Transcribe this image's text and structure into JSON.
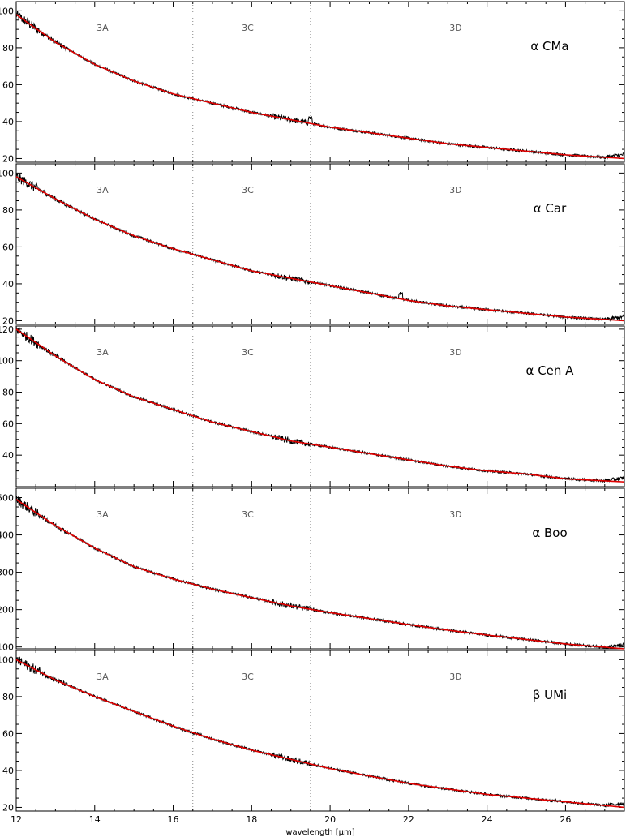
{
  "chart_data": {
    "type": "line",
    "xlabel": "wavelength [μm]",
    "xlim": [
      12,
      27.5
    ],
    "xticks": [
      12,
      14,
      16,
      18,
      20,
      22,
      24,
      26
    ],
    "band_boundaries": [
      16.5,
      19.5
    ],
    "bands": [
      {
        "label": "3A",
        "x": 14.2
      },
      {
        "label": "3C",
        "x": 17.9
      },
      {
        "label": "3D",
        "x": 23.2
      }
    ],
    "colors": {
      "observed": "#000000",
      "model": "#e00000",
      "band_label": "#555555",
      "boundary": "#888888"
    },
    "panels": [
      {
        "star": "α CMa",
        "ylim": [
          18,
          105
        ],
        "yticks": [
          20,
          40,
          60,
          80,
          100
        ],
        "model": {
          "x": [
            12,
            13,
            14,
            15,
            16,
            17,
            18,
            19,
            20,
            21,
            22,
            23,
            24,
            25,
            26,
            27.5
          ],
          "y": [
            98,
            83,
            71,
            62,
            55,
            50,
            45,
            41,
            37,
            34,
            31,
            28,
            26,
            24,
            22,
            20
          ]
        },
        "features": [
          {
            "x": 19.5,
            "amp": 3
          }
        ]
      },
      {
        "star": "α Car",
        "ylim": [
          18,
          105
        ],
        "yticks": [
          20,
          40,
          60,
          80,
          100
        ],
        "model": {
          "x": [
            12,
            13,
            14,
            15,
            16,
            17,
            18,
            19,
            20,
            21,
            22,
            23,
            24,
            25,
            26,
            27.5
          ],
          "y": [
            98,
            86,
            75,
            66,
            59,
            53,
            47,
            43,
            39,
            35,
            31,
            28,
            26,
            24,
            22,
            20
          ]
        },
        "features": [
          {
            "x": 21.8,
            "amp": 3
          }
        ]
      },
      {
        "star": "α Cen A",
        "ylim": [
          20,
          122
        ],
        "yticks": [
          40,
          60,
          80,
          100,
          120
        ],
        "model": {
          "x": [
            12,
            13,
            14,
            15,
            16,
            17,
            18,
            19,
            20,
            21,
            22,
            23,
            24,
            25,
            26,
            27.5
          ],
          "y": [
            120,
            103,
            88,
            77,
            69,
            61,
            55,
            49,
            45,
            41,
            37,
            33,
            30,
            28,
            25,
            23
          ]
        },
        "features": []
      },
      {
        "star": "α Boo",
        "ylim": [
          95,
          525
        ],
        "yticks": [
          100,
          200,
          300,
          400,
          500
        ],
        "model": {
          "x": [
            12,
            13,
            14,
            15,
            16,
            17,
            18,
            19,
            20,
            21,
            22,
            23,
            24,
            25,
            26,
            27.5
          ],
          "y": [
            495,
            425,
            365,
            315,
            282,
            255,
            232,
            210,
            192,
            176,
            160,
            145,
            132,
            120,
            108,
            95
          ]
        },
        "features": []
      },
      {
        "star": "β UMi",
        "ylim": [
          18,
          105
        ],
        "yticks": [
          20,
          40,
          60,
          80,
          100
        ],
        "model": {
          "x": [
            12,
            13,
            14,
            15,
            16,
            17,
            18,
            19,
            20,
            21,
            22,
            23,
            24,
            25,
            26,
            27.5
          ],
          "y": [
            100,
            89,
            80,
            72,
            64,
            57,
            51,
            46,
            41,
            37,
            33,
            30,
            27,
            25,
            23,
            20
          ]
        },
        "features": []
      }
    ]
  }
}
